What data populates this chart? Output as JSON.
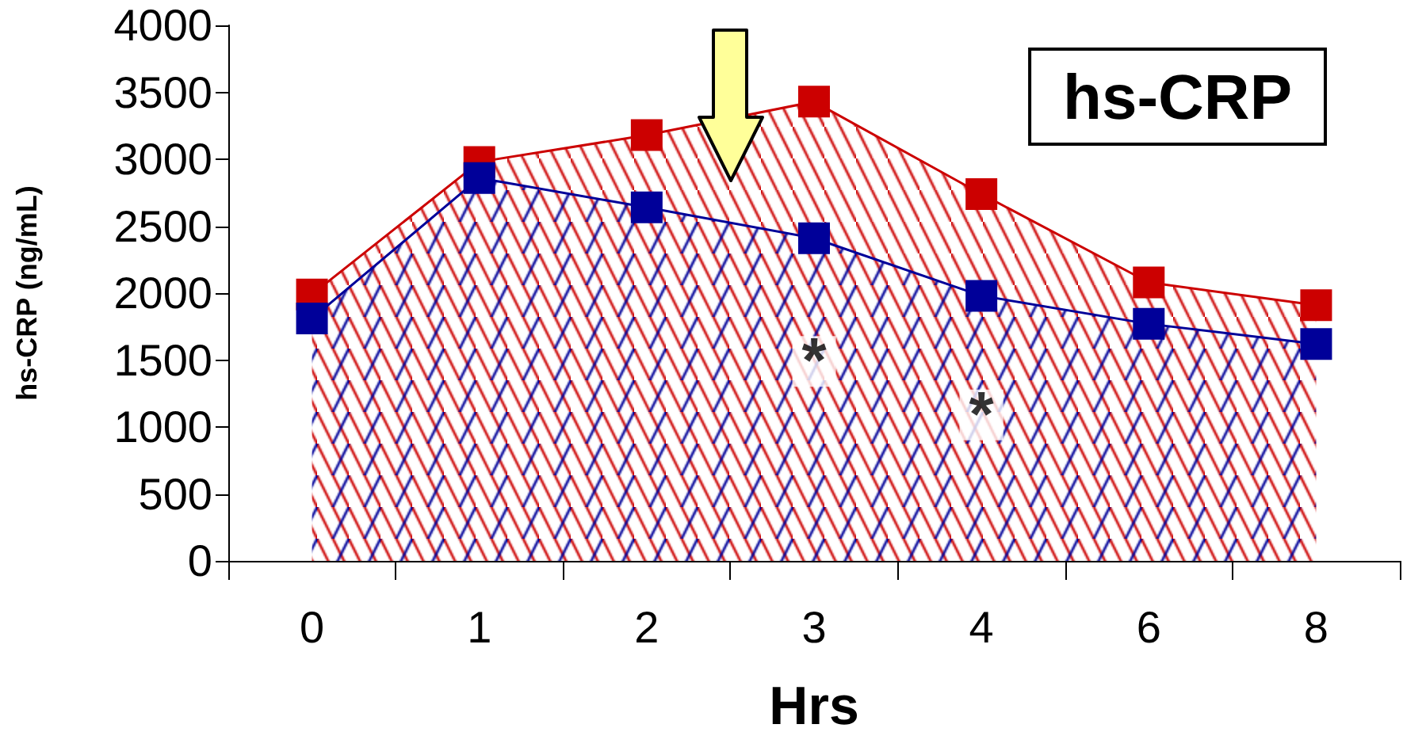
{
  "chart_data": {
    "type": "area",
    "xlabel": "Hrs",
    "ylabel": "hs-CRP (ng/mL)",
    "categories": [
      "0",
      "1",
      "2",
      "3",
      "4",
      "6",
      "8"
    ],
    "series": [
      {
        "color": "#cc0000",
        "values": [
          1990,
          2980,
          3180,
          3430,
          2740,
          2080,
          1910
        ]
      },
      {
        "color": "#000099",
        "values": [
          1810,
          2860,
          2640,
          2410,
          1980,
          1770,
          1620
        ]
      }
    ],
    "ylim": [
      0,
      4000
    ],
    "yticks": [
      0,
      500,
      1000,
      1500,
      2000,
      2500,
      3000,
      3500,
      4000
    ],
    "grid": false,
    "marker": "square",
    "line_style": "solid",
    "annotations": [
      "hs-CRP",
      {
        "text": "*",
        "x": "3",
        "y": 1490
      },
      {
        "text": "*",
        "x": "4",
        "y": 1090
      }
    ]
  }
}
